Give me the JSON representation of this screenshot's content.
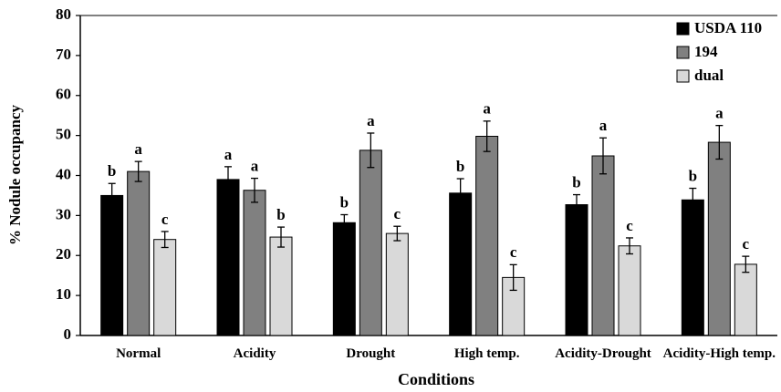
{
  "chart_data": {
    "type": "bar",
    "y_label": "% Nodule occupancy",
    "x_label": "Conditions",
    "categories": [
      "Normal",
      "Acidity",
      "Drought",
      "High temp.",
      "Acidity-Drought",
      "Acidity-High temp."
    ],
    "series": [
      {
        "name": "USDA 110",
        "color": "#000000",
        "values": [
          35,
          39,
          28.2,
          35.6,
          32.7,
          33.9
        ],
        "errors": [
          3,
          3.2,
          2,
          3.6,
          2.5,
          2.9
        ],
        "letters": [
          "b",
          "a",
          "b",
          "b",
          "b",
          "b"
        ]
      },
      {
        "name": "194",
        "color": "#808080",
        "values": [
          41,
          36.3,
          46.3,
          49.8,
          44.9,
          48.3
        ],
        "errors": [
          2.5,
          3,
          4.3,
          3.8,
          4.5,
          4.2
        ],
        "letters": [
          "a",
          "a",
          "a",
          "a",
          "a",
          "a"
        ]
      },
      {
        "name": "dual",
        "color": "#d9d9d9",
        "values": [
          24,
          24.6,
          25.5,
          14.5,
          22.4,
          17.8
        ],
        "errors": [
          2,
          2.5,
          1.8,
          3.2,
          2,
          2
        ],
        "letters": [
          "c",
          "b",
          "c",
          "c",
          "c",
          "c"
        ]
      }
    ],
    "ylim": [
      0,
      80
    ],
    "yticks": [
      0,
      10,
      20,
      30,
      40,
      50,
      60,
      70,
      80
    ],
    "legend": "top-right"
  }
}
